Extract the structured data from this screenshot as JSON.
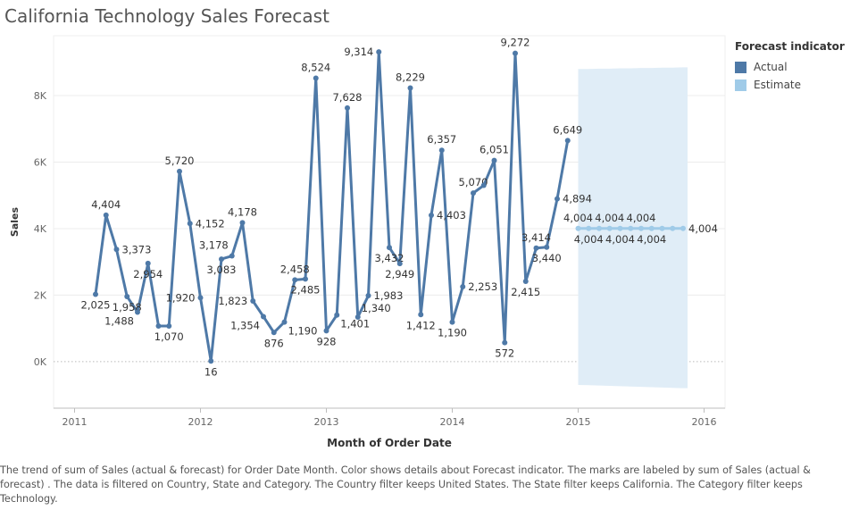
{
  "title": "California Technology Sales Forecast",
  "caption": "The trend of sum of Sales (actual & forecast)  for Order Date Month.  Color shows details about Forecast indicator.  The marks are labeled by sum of Sales (actual & forecast) . The data is filtered on Country, State and Category. The Country filter keeps United States. The State filter keeps California. The Category filter keeps Technology.",
  "legend": {
    "title": "Forecast indicator",
    "items": [
      {
        "label": "Actual",
        "color": "#4e79a7"
      },
      {
        "label": "Estimate",
        "color": "#a0cbe8"
      }
    ]
  },
  "chart_data": {
    "type": "line",
    "title": "California Technology Sales Forecast",
    "xlabel": "Month of Order Date",
    "ylabel": "Sales",
    "xlim": [
      "2010-11",
      "2016-03"
    ],
    "ylim": [
      -1400,
      9800
    ],
    "x_ticks": [
      "2011",
      "2012",
      "2013",
      "2014",
      "2015",
      "2016"
    ],
    "y_ticks": [
      {
        "value": 0,
        "label": "0K"
      },
      {
        "value": 2000,
        "label": "2K"
      },
      {
        "value": 4000,
        "label": "4K"
      },
      {
        "value": 6000,
        "label": "6K"
      },
      {
        "value": 8000,
        "label": "8K"
      }
    ],
    "grid": "horizontal",
    "series": [
      {
        "name": "Actual",
        "color": "#4e79a7",
        "points": [
          {
            "x": "2011-03",
            "y": 2025,
            "label": "2,025",
            "pos": "below"
          },
          {
            "x": "2011-04",
            "y": 4404,
            "label": "4,404",
            "pos": "above"
          },
          {
            "x": "2011-05",
            "y": 3373,
            "label": "3,373",
            "pos": "right"
          },
          {
            "x": "2011-06",
            "y": 1958,
            "label": "1,958",
            "pos": "below"
          },
          {
            "x": "2011-07",
            "y": 1488,
            "label": "1,488",
            "pos": "below-left"
          },
          {
            "x": "2011-08",
            "y": 2954,
            "label": "2,954",
            "pos": "below"
          },
          {
            "x": "2011-09",
            "y": 1070,
            "label": "",
            "pos": "none"
          },
          {
            "x": "2011-10",
            "y": 1070,
            "label": "1,070",
            "pos": "below"
          },
          {
            "x": "2011-11",
            "y": 5720,
            "label": "5,720",
            "pos": "above"
          },
          {
            "x": "2011-12",
            "y": 4152,
            "label": "4,152",
            "pos": "right"
          },
          {
            "x": "2012-01",
            "y": 1920,
            "label": "1,920",
            "pos": "left"
          },
          {
            "x": "2012-02",
            "y": 16,
            "label": "16",
            "pos": "below"
          },
          {
            "x": "2012-03",
            "y": 3083,
            "label": "3,083",
            "pos": "below"
          },
          {
            "x": "2012-04",
            "y": 3178,
            "label": "3,178",
            "pos": "above-left"
          },
          {
            "x": "2012-05",
            "y": 4178,
            "label": "4,178",
            "pos": "above"
          },
          {
            "x": "2012-06",
            "y": 1823,
            "label": "1,823",
            "pos": "left"
          },
          {
            "x": "2012-07",
            "y": 1354,
            "label": "1,354",
            "pos": "below-left"
          },
          {
            "x": "2012-08",
            "y": 876,
            "label": "876",
            "pos": "below"
          },
          {
            "x": "2012-09",
            "y": 1190,
            "label": "1,190",
            "pos": "below-right"
          },
          {
            "x": "2012-10",
            "y": 2458,
            "label": "2,458",
            "pos": "above"
          },
          {
            "x": "2012-11",
            "y": 2485,
            "label": "2,485",
            "pos": "below"
          },
          {
            "x": "2012-12",
            "y": 8524,
            "label": "8,524",
            "pos": "above"
          },
          {
            "x": "2013-01",
            "y": 928,
            "label": "928",
            "pos": "below"
          },
          {
            "x": "2013-02",
            "y": 1401,
            "label": "1,401",
            "pos": "below-right"
          },
          {
            "x": "2013-03",
            "y": 7628,
            "label": "7,628",
            "pos": "above"
          },
          {
            "x": "2013-04",
            "y": 1340,
            "label": "1,340",
            "pos": "above-right"
          },
          {
            "x": "2013-05",
            "y": 1983,
            "label": "1,983",
            "pos": "right"
          },
          {
            "x": "2013-06",
            "y": 9314,
            "label": "9,314",
            "pos": "left"
          },
          {
            "x": "2013-07",
            "y": 3432,
            "label": "3,432",
            "pos": "below"
          },
          {
            "x": "2013-08",
            "y": 2949,
            "label": "2,949",
            "pos": "below"
          },
          {
            "x": "2013-09",
            "y": 8229,
            "label": "8,229",
            "pos": "above"
          },
          {
            "x": "2013-10",
            "y": 1412,
            "label": "1,412",
            "pos": "below"
          },
          {
            "x": "2013-11",
            "y": 4403,
            "label": "4,403",
            "pos": "right"
          },
          {
            "x": "2013-12",
            "y": 6357,
            "label": "6,357",
            "pos": "above"
          },
          {
            "x": "2014-01",
            "y": 1190,
            "label": "1,190",
            "pos": "below"
          },
          {
            "x": "2014-02",
            "y": 2253,
            "label": "2,253",
            "pos": "right"
          },
          {
            "x": "2014-03",
            "y": 5070,
            "label": "5,070",
            "pos": "above"
          },
          {
            "x": "2014-04",
            "y": 5300,
            "label": "",
            "pos": "none"
          },
          {
            "x": "2014-05",
            "y": 6051,
            "label": "6,051",
            "pos": "above"
          },
          {
            "x": "2014-06",
            "y": 572,
            "label": "572",
            "pos": "below"
          },
          {
            "x": "2014-07",
            "y": 9272,
            "label": "9,272",
            "pos": "above"
          },
          {
            "x": "2014-08",
            "y": 2415,
            "label": "2,415",
            "pos": "below"
          },
          {
            "x": "2014-09",
            "y": 3414,
            "label": "3,414",
            "pos": "above"
          },
          {
            "x": "2014-10",
            "y": 3440,
            "label": "3,440",
            "pos": "below"
          },
          {
            "x": "2014-11",
            "y": 4894,
            "label": "4,894",
            "pos": "right"
          },
          {
            "x": "2014-12",
            "y": 6649,
            "label": "6,649",
            "pos": "above"
          }
        ]
      },
      {
        "name": "Estimate",
        "color": "#a0cbe8",
        "band_color": "#e0edf7",
        "points": [
          {
            "x": "2015-01",
            "y": 4004,
            "lower": -700,
            "upper": 8800,
            "label": "4,004",
            "pos": "above"
          },
          {
            "x": "2015-02",
            "y": 4004,
            "lower": -710,
            "upper": 8800,
            "label": "4,004",
            "pos": "below"
          },
          {
            "x": "2015-03",
            "y": 4004,
            "lower": -720,
            "upper": 8810,
            "label": "",
            "pos": "none"
          },
          {
            "x": "2015-04",
            "y": 4004,
            "lower": -730,
            "upper": 8810,
            "label": "4,004",
            "pos": "above"
          },
          {
            "x": "2015-05",
            "y": 4004,
            "lower": -740,
            "upper": 8820,
            "label": "4,004",
            "pos": "below"
          },
          {
            "x": "2015-06",
            "y": 4004,
            "lower": -750,
            "upper": 8820,
            "label": "",
            "pos": "none"
          },
          {
            "x": "2015-07",
            "y": 4004,
            "lower": -760,
            "upper": 8830,
            "label": "4,004",
            "pos": "above"
          },
          {
            "x": "2015-08",
            "y": 4004,
            "lower": -770,
            "upper": 8830,
            "label": "4,004",
            "pos": "below"
          },
          {
            "x": "2015-09",
            "y": 4004,
            "lower": -780,
            "upper": 8840,
            "label": "",
            "pos": "none"
          },
          {
            "x": "2015-10",
            "y": 4004,
            "lower": -790,
            "upper": 8840,
            "label": "",
            "pos": "none"
          },
          {
            "x": "2015-11",
            "y": 4004,
            "lower": -800,
            "upper": 8850,
            "label": "4,004",
            "pos": "right"
          }
        ]
      }
    ]
  }
}
